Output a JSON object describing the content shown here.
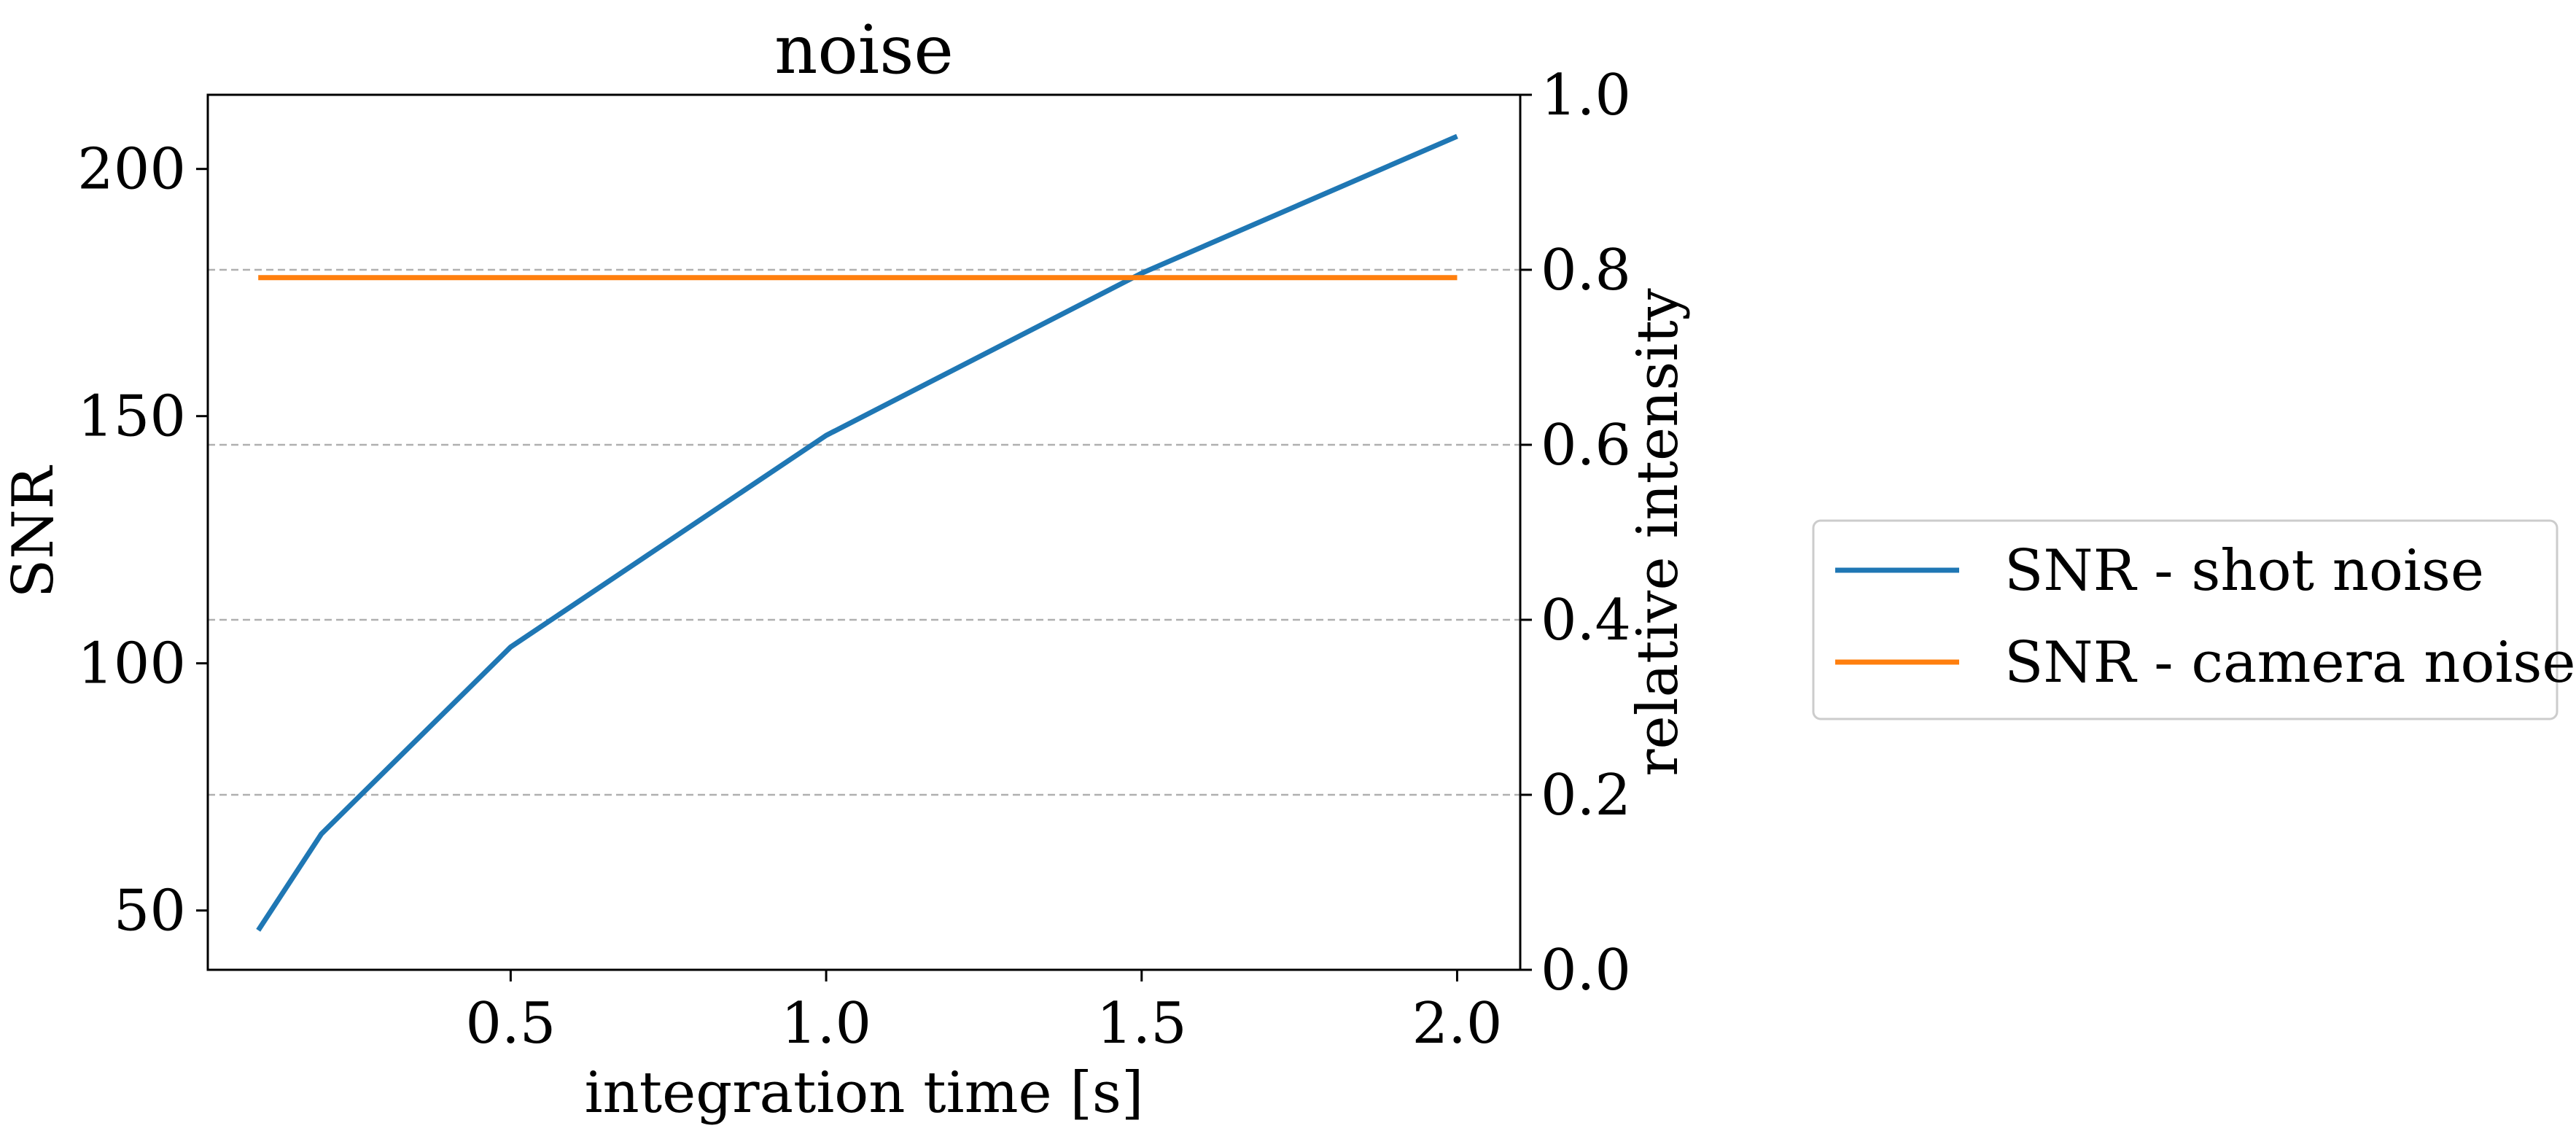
{
  "chart_data": {
    "type": "line",
    "title": "noise",
    "xlabel": "integration time [s]",
    "ylabel": "SNR",
    "ylabel_right": "relative intensity",
    "xlim": [
      0.02,
      2.1
    ],
    "ylim": [
      38,
      215
    ],
    "ylim_right": [
      0.0,
      1.0
    ],
    "x_ticks": [
      0.5,
      1.0,
      1.5,
      2.0
    ],
    "x_tick_labels": [
      "0.5",
      "1.0",
      "1.5",
      "2.0"
    ],
    "y_ticks": [
      50,
      100,
      150,
      200
    ],
    "y_tick_labels": [
      "50",
      "100",
      "150",
      "200"
    ],
    "y_right_ticks": [
      0.0,
      0.2,
      0.4,
      0.6,
      0.8,
      1.0
    ],
    "y_right_tick_labels": [
      "0.0",
      "0.2",
      "0.4",
      "0.6",
      "0.8",
      "1.0"
    ],
    "grid": "horizontal dashed at right-axis ticks",
    "legend_position": "outside-right",
    "series": [
      {
        "name": "SNR - shot noise",
        "color": "#1f77b4",
        "x": [
          0.1,
          0.2,
          0.5,
          1.0,
          1.5,
          2.0
        ],
        "y": [
          46,
          65.5,
          103.3,
          146.1,
          178.9,
          206.6
        ]
      },
      {
        "name": "SNR - camera noise",
        "color": "#ff7f0e",
        "x": [
          0.1,
          2.0
        ],
        "y": [
          178,
          178
        ]
      }
    ]
  }
}
